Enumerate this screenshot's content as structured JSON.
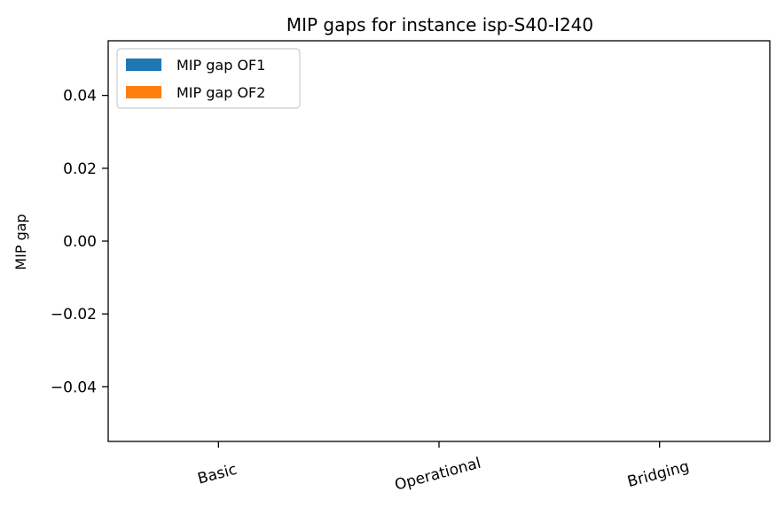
{
  "chart_data": {
    "type": "bar",
    "title": "MIP gaps for instance isp-S40-I240",
    "xlabel": "",
    "ylabel": "MIP gap",
    "categories": [
      "Basic",
      "Operational",
      "Bridging"
    ],
    "series": [
      {
        "name": "MIP gap OF1",
        "values": [
          0,
          0,
          0
        ],
        "color": "#1f77b4"
      },
      {
        "name": "MIP gap OF2",
        "values": [
          0,
          0,
          0
        ],
        "color": "#ff7f0e"
      }
    ],
    "ylim": [
      -0.055,
      0.055
    ],
    "yticks": [
      -0.04,
      -0.02,
      0.0,
      0.02,
      0.04
    ],
    "ytick_labels": [
      "−0.04",
      "−0.02",
      "0.00",
      "0.02",
      "0.04"
    ],
    "xtick_rotation_deg": 15,
    "grid": false,
    "legend_position": "top-left"
  }
}
